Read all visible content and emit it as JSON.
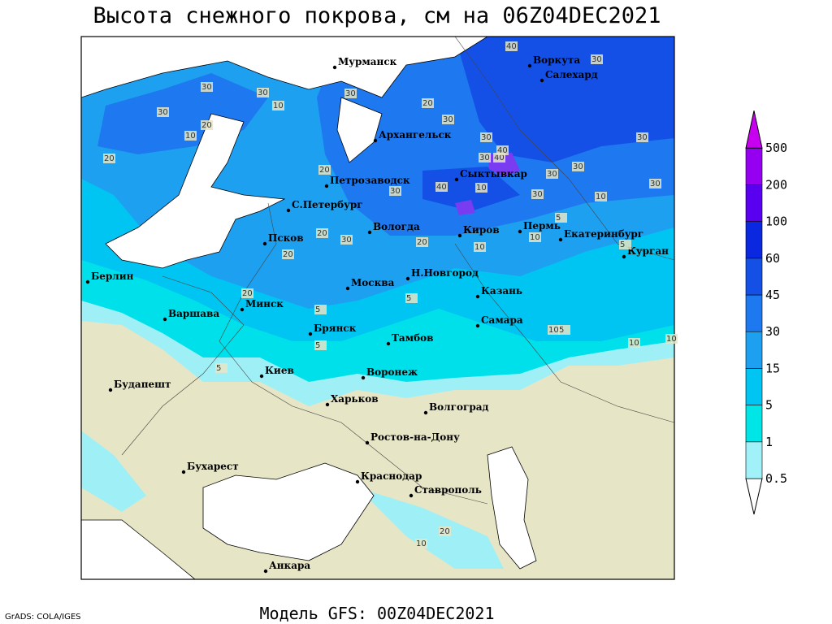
{
  "title": "Высота снежного покрова, см на 06Z04DEC2021",
  "footer_left": "GrADS: COLA/IGES",
  "footer": "Модель GFS: 00Z04DEC2021",
  "legend": {
    "levels": [
      0.5,
      1,
      5,
      15,
      30,
      45,
      60,
      100,
      200,
      500
    ],
    "colors": [
      "#ffffff",
      "#a0f2f8",
      "#00e6e6",
      "#00c4f2",
      "#1ea0f0",
      "#1e78f0",
      "#1450e6",
      "#0a28e0",
      "#5a00f0",
      "#9600f0",
      "#c800f0"
    ]
  },
  "cities": [
    "Мурманск",
    "Воркута",
    "Салехард",
    "Архангельск",
    "Петрозаводск",
    "Сыктывкар",
    "С.Петербург",
    "Вологда",
    "Киров",
    "Пермь",
    "Екатеринбург",
    "Псков",
    "Курган",
    "Берлин",
    "Н.Новгород",
    "Москва",
    "Казань",
    "Минск",
    "Варшава",
    "Брянск",
    "Самара",
    "Тамбов",
    "Киев",
    "Воронеж",
    "Будапешт",
    "Харьков",
    "Волгоград",
    "Ростов-на-Дону",
    "Бухарест",
    "Краснодар",
    "Ставрополь",
    "Анкара"
  ],
  "contour_labels": [
    30,
    10,
    20,
    30,
    30,
    30,
    40,
    20,
    20,
    30,
    10,
    20,
    30,
    30,
    40,
    30,
    30,
    30,
    40,
    30,
    30,
    30,
    20,
    30,
    20,
    40,
    10,
    30,
    20,
    10,
    5,
    10,
    20,
    10,
    10,
    5,
    5,
    10,
    5,
    10,
    5,
    5,
    5,
    20,
    10
  ]
}
